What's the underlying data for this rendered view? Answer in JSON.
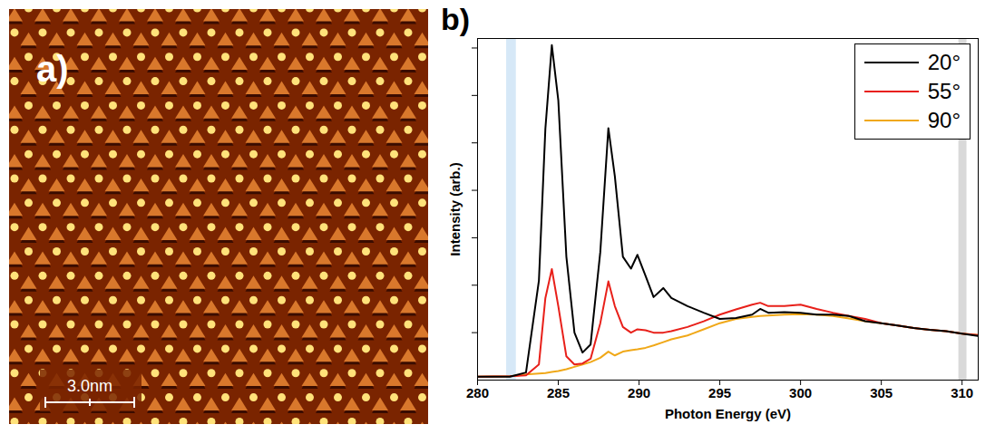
{
  "image": {
    "label": "a)",
    "scale_bar": "3.0nm"
  },
  "chart_data": {
    "type": "line",
    "label": "b)",
    "x_label": "Photon Energy (eV)",
    "y_label": "Intensity (arb.)",
    "x": [
      280,
      282,
      283,
      283.8,
      284.2,
      284.6,
      285,
      285.5,
      286,
      286.5,
      287,
      287.6,
      288.1,
      288.5,
      289,
      289.5,
      289.9,
      290.4,
      290.9,
      291.5,
      292,
      293,
      294,
      295,
      296,
      297,
      297.5,
      298,
      299,
      300,
      301,
      302,
      303,
      304,
      305,
      306,
      307,
      308,
      309,
      310,
      311
    ],
    "series": [
      {
        "name": "20°",
        "color": "#000000",
        "values": [
          0.07,
          0.07,
          0.16,
          2.1,
          5.3,
          7.06,
          5.9,
          2.6,
          1.0,
          0.58,
          0.75,
          2.7,
          5.31,
          4.3,
          2.6,
          2.35,
          2.64,
          2.2,
          1.75,
          1.94,
          1.73,
          1.56,
          1.42,
          1.29,
          1.31,
          1.38,
          1.5,
          1.42,
          1.43,
          1.42,
          1.38,
          1.38,
          1.35,
          1.24,
          1.2,
          1.15,
          1.1,
          1.06,
          1.03,
          0.98,
          0.93
        ]
      },
      {
        "name": "55°",
        "color": "#e8201a",
        "values": [
          0.07,
          0.08,
          0.1,
          0.33,
          1.73,
          2.34,
          1.56,
          0.5,
          0.33,
          0.35,
          0.45,
          1.2,
          2.08,
          1.56,
          1.12,
          1.0,
          1.07,
          1.05,
          1.0,
          1.0,
          1.03,
          1.12,
          1.24,
          1.38,
          1.49,
          1.59,
          1.63,
          1.56,
          1.56,
          1.59,
          1.5,
          1.42,
          1.35,
          1.29,
          1.2,
          1.15,
          1.1,
          1.06,
          1.03,
          0.98,
          0.95
        ]
      },
      {
        "name": "90°",
        "color": "#f0a818",
        "values": [
          0.07,
          0.08,
          0.12,
          0.14,
          0.15,
          0.17,
          0.19,
          0.23,
          0.28,
          0.33,
          0.38,
          0.47,
          0.6,
          0.52,
          0.6,
          0.63,
          0.65,
          0.68,
          0.73,
          0.8,
          0.86,
          0.94,
          1.07,
          1.2,
          1.29,
          1.33,
          1.35,
          1.36,
          1.38,
          1.39,
          1.38,
          1.35,
          1.3,
          1.24,
          1.2,
          1.15,
          1.1,
          1.06,
          1.03,
          0.98,
          0.95
        ]
      }
    ],
    "shaded_regions": [
      {
        "x": [
          281.8,
          282.4
        ],
        "color": "#d6e8f7"
      },
      {
        "x": [
          309.8,
          310.3
        ],
        "color": "#d9d9d9"
      }
    ],
    "xlim": [
      280,
      311
    ],
    "xticks": [
      280,
      285,
      290,
      295,
      300,
      305,
      310
    ],
    "ylim": [
      0,
      7.2
    ],
    "yticks": [
      1,
      2,
      3,
      4,
      5,
      6,
      7
    ],
    "tick_labels": "x",
    "legend": "top-right"
  }
}
